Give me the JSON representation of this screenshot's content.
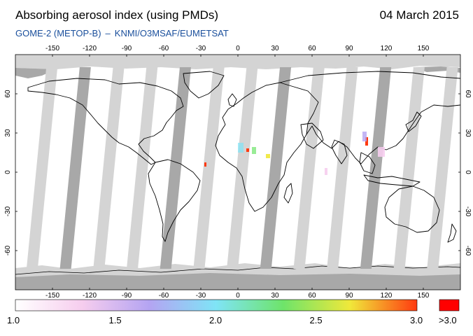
{
  "header": {
    "title": "Absorbing aerosol index (using PMDs)",
    "date": "04 March 2015",
    "instrument": "GOME-2 (METOP-B)",
    "separator": "–",
    "credit": "KNMI/O3MSAF/EUMETSAT"
  },
  "map": {
    "lon_ticks": [
      "-150",
      "-120",
      "-90",
      "-60",
      "-30",
      "0",
      "30",
      "60",
      "90",
      "120",
      "150"
    ],
    "lat_ticks": [
      "60",
      "30",
      "0",
      "-30",
      "-60"
    ],
    "colors": {
      "background": "#ffffff",
      "no_data": "#d4d4d4",
      "swath": "#a8a8a8",
      "coast": "#000000"
    }
  },
  "legend": {
    "labels": [
      "1.0",
      "1.5",
      "2.0",
      "2.5",
      "3.0"
    ],
    "overflow_label": ">3.0",
    "overflow_color": "#ff0000",
    "gradient_stops": [
      "#ffffff",
      "#f6cdee",
      "#b4a4f2",
      "#7fe4f6",
      "#6ee46a",
      "#f0e83a",
      "#ff3a10"
    ]
  }
}
